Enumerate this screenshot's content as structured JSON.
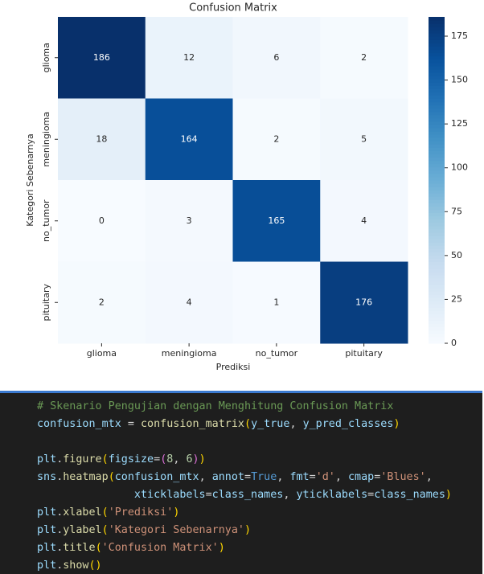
{
  "chart_data": {
    "type": "heatmap",
    "title": "Confusion Matrix",
    "xlabel": "Prediksi",
    "ylabel": "Kategori Sebenarnya",
    "x_categories": [
      "glioma",
      "meningioma",
      "no_tumor",
      "pituitary"
    ],
    "y_categories": [
      "glioma",
      "meningioma",
      "no_tumor",
      "pituitary"
    ],
    "values": [
      [
        186,
        12,
        6,
        2
      ],
      [
        18,
        164,
        2,
        5
      ],
      [
        0,
        3,
        165,
        4
      ],
      [
        2,
        4,
        1,
        176
      ]
    ],
    "colormap": "Blues",
    "clim": [
      0,
      186
    ],
    "colorbar_ticks": [
      0,
      25,
      50,
      75,
      100,
      125,
      150,
      175
    ]
  },
  "code": {
    "lines": [
      {
        "tokens": [
          {
            "text": "# Skenario Pengujian dengan Menghitung Confusion Matrix",
            "color": "#6a9955"
          }
        ]
      },
      {
        "tokens": [
          {
            "text": "confusion_mtx",
            "color": "#9cdcfe"
          },
          {
            "text": " = ",
            "color": "#d4d4d4"
          },
          {
            "text": "confusion_matrix",
            "color": "#dcdcaa"
          },
          {
            "text": "(",
            "color": "#ffd700"
          },
          {
            "text": "y_true",
            "color": "#9cdcfe"
          },
          {
            "text": ", ",
            "color": "#d4d4d4"
          },
          {
            "text": "y_pred_classes",
            "color": "#9cdcfe"
          },
          {
            "text": ")",
            "color": "#ffd700"
          }
        ]
      },
      {
        "tokens": [
          {
            "text": "plt",
            "color": "#9cdcfe"
          },
          {
            "text": ".",
            "color": "#d4d4d4"
          },
          {
            "text": "figure",
            "color": "#dcdcaa"
          },
          {
            "text": "(",
            "color": "#ffd700"
          },
          {
            "text": "figsize",
            "color": "#9cdcfe"
          },
          {
            "text": "=",
            "color": "#d4d4d4"
          },
          {
            "text": "(",
            "color": "#da70d6"
          },
          {
            "text": "8",
            "color": "#b5cea8"
          },
          {
            "text": ", ",
            "color": "#d4d4d4"
          },
          {
            "text": "6",
            "color": "#b5cea8"
          },
          {
            "text": ")",
            "color": "#da70d6"
          },
          {
            "text": ")",
            "color": "#ffd700"
          }
        ]
      },
      {
        "tokens": [
          {
            "text": "sns",
            "color": "#9cdcfe"
          },
          {
            "text": ".",
            "color": "#d4d4d4"
          },
          {
            "text": "heatmap",
            "color": "#dcdcaa"
          },
          {
            "text": "(",
            "color": "#ffd700"
          },
          {
            "text": "confusion_mtx",
            "color": "#9cdcfe"
          },
          {
            "text": ", ",
            "color": "#d4d4d4"
          },
          {
            "text": "annot",
            "color": "#9cdcfe"
          },
          {
            "text": "=",
            "color": "#d4d4d4"
          },
          {
            "text": "True",
            "color": "#569cd6"
          },
          {
            "text": ", ",
            "color": "#d4d4d4"
          },
          {
            "text": "fmt",
            "color": "#9cdcfe"
          },
          {
            "text": "=",
            "color": "#d4d4d4"
          },
          {
            "text": "'d'",
            "color": "#ce9178"
          },
          {
            "text": ", ",
            "color": "#d4d4d4"
          },
          {
            "text": "cmap",
            "color": "#9cdcfe"
          },
          {
            "text": "=",
            "color": "#d4d4d4"
          },
          {
            "text": "'Blues'",
            "color": "#ce9178"
          },
          {
            "text": ",",
            "color": "#d4d4d4"
          }
        ]
      },
      {
        "tokens": [
          {
            "text": "               xticklabels",
            "color": "#9cdcfe"
          },
          {
            "text": "=",
            "color": "#d4d4d4"
          },
          {
            "text": "class_names",
            "color": "#9cdcfe"
          },
          {
            "text": ", ",
            "color": "#d4d4d4"
          },
          {
            "text": "yticklabels",
            "color": "#9cdcfe"
          },
          {
            "text": "=",
            "color": "#d4d4d4"
          },
          {
            "text": "class_names",
            "color": "#9cdcfe"
          },
          {
            "text": ")",
            "color": "#ffd700"
          }
        ]
      },
      {
        "tokens": [
          {
            "text": "plt",
            "color": "#9cdcfe"
          },
          {
            "text": ".",
            "color": "#d4d4d4"
          },
          {
            "text": "xlabel",
            "color": "#dcdcaa"
          },
          {
            "text": "(",
            "color": "#ffd700"
          },
          {
            "text": "'Prediksi'",
            "color": "#ce9178"
          },
          {
            "text": ")",
            "color": "#ffd700"
          }
        ]
      },
      {
        "tokens": [
          {
            "text": "plt",
            "color": "#9cdcfe"
          },
          {
            "text": ".",
            "color": "#d4d4d4"
          },
          {
            "text": "ylabel",
            "color": "#dcdcaa"
          },
          {
            "text": "(",
            "color": "#ffd700"
          },
          {
            "text": "'Kategori Sebenarnya'",
            "color": "#ce9178"
          },
          {
            "text": ")",
            "color": "#ffd700"
          }
        ]
      },
      {
        "tokens": [
          {
            "text": "plt",
            "color": "#9cdcfe"
          },
          {
            "text": ".",
            "color": "#d4d4d4"
          },
          {
            "text": "title",
            "color": "#dcdcaa"
          },
          {
            "text": "(",
            "color": "#ffd700"
          },
          {
            "text": "'Confusion Matrix'",
            "color": "#ce9178"
          },
          {
            "text": ")",
            "color": "#ffd700"
          }
        ]
      },
      {
        "tokens": [
          {
            "text": "plt",
            "color": "#9cdcfe"
          },
          {
            "text": ".",
            "color": "#d4d4d4"
          },
          {
            "text": "show",
            "color": "#dcdcaa"
          },
          {
            "text": "()",
            "color": "#ffd700"
          }
        ]
      }
    ]
  }
}
